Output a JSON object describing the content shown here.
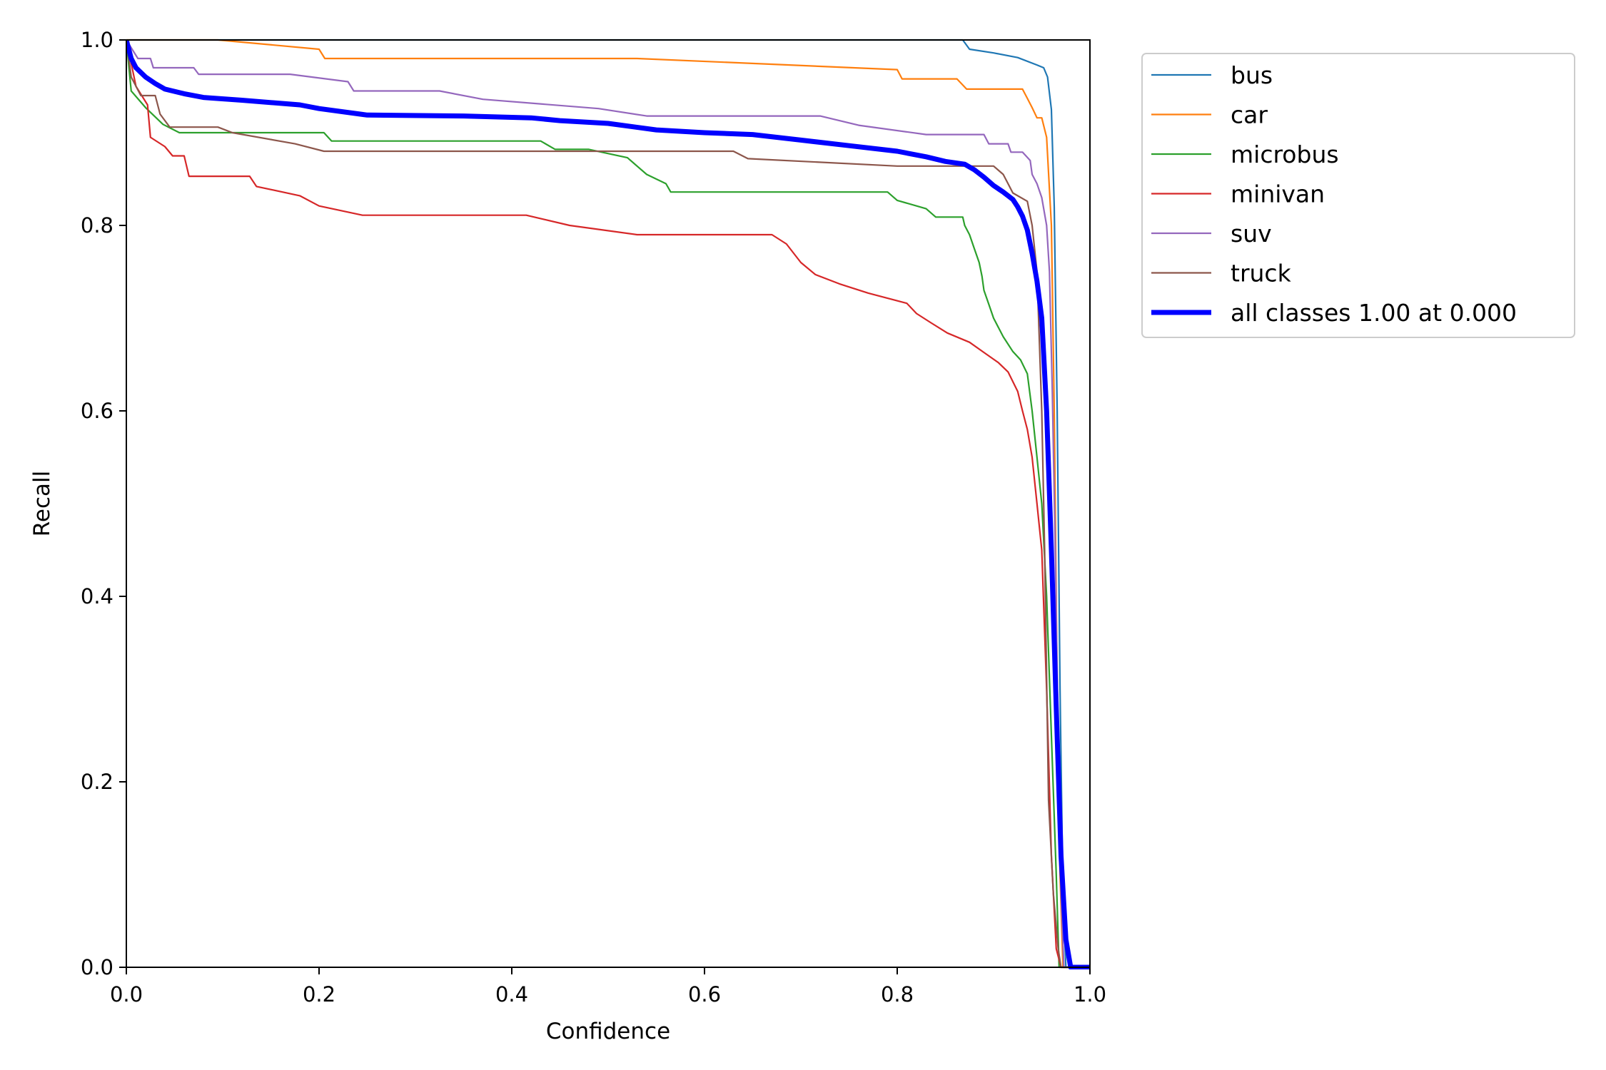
{
  "chart_data": {
    "type": "line",
    "xlabel": "Confidence",
    "ylabel": "Recall",
    "xlim": [
      0,
      1
    ],
    "ylim": [
      0,
      1
    ],
    "x_ticks": [
      "0.0",
      "0.2",
      "0.4",
      "0.6",
      "0.8",
      "1.0"
    ],
    "y_ticks": [
      "0.0",
      "0.2",
      "0.4",
      "0.6",
      "0.8",
      "1.0"
    ],
    "grid": false,
    "legend_position": "outside-top-right",
    "series": [
      {
        "name": "bus",
        "color": "#1f77b4",
        "points": [
          [
            0.0,
            1.0
          ],
          [
            0.868,
            1.0
          ],
          [
            0.875,
            0.99
          ],
          [
            0.9,
            0.986
          ],
          [
            0.925,
            0.981
          ],
          [
            0.945,
            0.973
          ],
          [
            0.952,
            0.97
          ],
          [
            0.956,
            0.96
          ],
          [
            0.96,
            0.925
          ],
          [
            0.963,
            0.82
          ],
          [
            0.966,
            0.6
          ],
          [
            0.969,
            0.3
          ],
          [
            0.972,
            0.08
          ],
          [
            0.975,
            0.0
          ],
          [
            1.0,
            0.0
          ]
        ]
      },
      {
        "name": "car",
        "color": "#ff7f0e",
        "points": [
          [
            0.0,
            1.0
          ],
          [
            0.095,
            1.0
          ],
          [
            0.2,
            0.99
          ],
          [
            0.206,
            0.98
          ],
          [
            0.53,
            0.98
          ],
          [
            0.8,
            0.968
          ],
          [
            0.805,
            0.958
          ],
          [
            0.862,
            0.958
          ],
          [
            0.872,
            0.947
          ],
          [
            0.93,
            0.947
          ],
          [
            0.935,
            0.937
          ],
          [
            0.94,
            0.927
          ],
          [
            0.945,
            0.916
          ],
          [
            0.95,
            0.916
          ],
          [
            0.955,
            0.895
          ],
          [
            0.96,
            0.8
          ],
          [
            0.963,
            0.6
          ],
          [
            0.966,
            0.3
          ],
          [
            0.969,
            0.1
          ],
          [
            0.972,
            0.0
          ],
          [
            1.0,
            0.0
          ]
        ]
      },
      {
        "name": "microbus",
        "color": "#2ca02c",
        "points": [
          [
            0.0,
            1.0
          ],
          [
            0.005,
            0.945
          ],
          [
            0.02,
            0.927
          ],
          [
            0.038,
            0.909
          ],
          [
            0.055,
            0.9
          ],
          [
            0.205,
            0.9
          ],
          [
            0.213,
            0.891
          ],
          [
            0.43,
            0.891
          ],
          [
            0.445,
            0.882
          ],
          [
            0.48,
            0.882
          ],
          [
            0.52,
            0.873
          ],
          [
            0.53,
            0.864
          ],
          [
            0.54,
            0.855
          ],
          [
            0.56,
            0.845
          ],
          [
            0.565,
            0.836
          ],
          [
            0.79,
            0.836
          ],
          [
            0.8,
            0.827
          ],
          [
            0.83,
            0.818
          ],
          [
            0.84,
            0.809
          ],
          [
            0.868,
            0.809
          ],
          [
            0.87,
            0.8
          ],
          [
            0.875,
            0.79
          ],
          [
            0.88,
            0.775
          ],
          [
            0.885,
            0.76
          ],
          [
            0.888,
            0.745
          ],
          [
            0.89,
            0.73
          ],
          [
            0.895,
            0.715
          ],
          [
            0.9,
            0.7
          ],
          [
            0.91,
            0.68
          ],
          [
            0.92,
            0.664
          ],
          [
            0.928,
            0.655
          ],
          [
            0.935,
            0.64
          ],
          [
            0.94,
            0.6
          ],
          [
            0.945,
            0.55
          ],
          [
            0.95,
            0.5
          ],
          [
            0.955,
            0.4
          ],
          [
            0.96,
            0.25
          ],
          [
            0.965,
            0.1
          ],
          [
            0.968,
            0.0
          ],
          [
            1.0,
            0.0
          ]
        ]
      },
      {
        "name": "minivan",
        "color": "#d62728",
        "points": [
          [
            0.0,
            1.0
          ],
          [
            0.01,
            0.95
          ],
          [
            0.022,
            0.93
          ],
          [
            0.025,
            0.895
          ],
          [
            0.04,
            0.885
          ],
          [
            0.048,
            0.875
          ],
          [
            0.06,
            0.875
          ],
          [
            0.065,
            0.853
          ],
          [
            0.128,
            0.853
          ],
          [
            0.135,
            0.842
          ],
          [
            0.18,
            0.832
          ],
          [
            0.2,
            0.821
          ],
          [
            0.245,
            0.811
          ],
          [
            0.415,
            0.811
          ],
          [
            0.46,
            0.8
          ],
          [
            0.53,
            0.79
          ],
          [
            0.67,
            0.79
          ],
          [
            0.685,
            0.78
          ],
          [
            0.7,
            0.76
          ],
          [
            0.715,
            0.747
          ],
          [
            0.74,
            0.737
          ],
          [
            0.77,
            0.727
          ],
          [
            0.81,
            0.716
          ],
          [
            0.82,
            0.705
          ],
          [
            0.835,
            0.695
          ],
          [
            0.852,
            0.684
          ],
          [
            0.875,
            0.674
          ],
          [
            0.89,
            0.663
          ],
          [
            0.905,
            0.652
          ],
          [
            0.915,
            0.642
          ],
          [
            0.925,
            0.621
          ],
          [
            0.93,
            0.6
          ],
          [
            0.935,
            0.58
          ],
          [
            0.94,
            0.55
          ],
          [
            0.945,
            0.5
          ],
          [
            0.95,
            0.45
          ],
          [
            0.955,
            0.3
          ],
          [
            0.96,
            0.12
          ],
          [
            0.965,
            0.02
          ],
          [
            0.97,
            0.0
          ],
          [
            1.0,
            0.0
          ]
        ]
      },
      {
        "name": "suv",
        "color": "#9467bd",
        "points": [
          [
            0.0,
            1.0
          ],
          [
            0.012,
            0.98
          ],
          [
            0.025,
            0.98
          ],
          [
            0.028,
            0.97
          ],
          [
            0.07,
            0.97
          ],
          [
            0.075,
            0.963
          ],
          [
            0.17,
            0.963
          ],
          [
            0.23,
            0.955
          ],
          [
            0.236,
            0.945
          ],
          [
            0.325,
            0.945
          ],
          [
            0.37,
            0.936
          ],
          [
            0.49,
            0.926
          ],
          [
            0.54,
            0.918
          ],
          [
            0.72,
            0.918
          ],
          [
            0.76,
            0.908
          ],
          [
            0.83,
            0.898
          ],
          [
            0.89,
            0.898
          ],
          [
            0.895,
            0.888
          ],
          [
            0.915,
            0.888
          ],
          [
            0.918,
            0.879
          ],
          [
            0.93,
            0.879
          ],
          [
            0.938,
            0.87
          ],
          [
            0.94,
            0.855
          ],
          [
            0.945,
            0.845
          ],
          [
            0.95,
            0.83
          ],
          [
            0.955,
            0.8
          ],
          [
            0.958,
            0.75
          ],
          [
            0.961,
            0.62
          ],
          [
            0.964,
            0.45
          ],
          [
            0.967,
            0.25
          ],
          [
            0.97,
            0.08
          ],
          [
            0.973,
            0.0
          ],
          [
            1.0,
            0.0
          ]
        ]
      },
      {
        "name": "truck",
        "color": "#8c564b",
        "points": [
          [
            0.0,
            1.0
          ],
          [
            0.005,
            0.96
          ],
          [
            0.015,
            0.94
          ],
          [
            0.03,
            0.94
          ],
          [
            0.035,
            0.92
          ],
          [
            0.045,
            0.906
          ],
          [
            0.095,
            0.906
          ],
          [
            0.11,
            0.9
          ],
          [
            0.175,
            0.888
          ],
          [
            0.205,
            0.88
          ],
          [
            0.63,
            0.88
          ],
          [
            0.645,
            0.872
          ],
          [
            0.8,
            0.864
          ],
          [
            0.9,
            0.864
          ],
          [
            0.91,
            0.855
          ],
          [
            0.915,
            0.845
          ],
          [
            0.92,
            0.835
          ],
          [
            0.935,
            0.826
          ],
          [
            0.94,
            0.8
          ],
          [
            0.945,
            0.75
          ],
          [
            0.95,
            0.6
          ],
          [
            0.953,
            0.45
          ],
          [
            0.957,
            0.18
          ],
          [
            0.962,
            0.08
          ],
          [
            0.967,
            0.02
          ],
          [
            0.97,
            0.0
          ],
          [
            1.0,
            0.0
          ]
        ]
      },
      {
        "name": "all classes 1.00 at 0.000",
        "color": "#0000ff",
        "bold": true,
        "points": [
          [
            0.0,
            1.0
          ],
          [
            0.005,
            0.98
          ],
          [
            0.01,
            0.97
          ],
          [
            0.02,
            0.96
          ],
          [
            0.03,
            0.953
          ],
          [
            0.04,
            0.947
          ],
          [
            0.06,
            0.942
          ],
          [
            0.08,
            0.938
          ],
          [
            0.12,
            0.935
          ],
          [
            0.18,
            0.93
          ],
          [
            0.2,
            0.926
          ],
          [
            0.25,
            0.919
          ],
          [
            0.35,
            0.918
          ],
          [
            0.42,
            0.916
          ],
          [
            0.45,
            0.913
          ],
          [
            0.5,
            0.91
          ],
          [
            0.55,
            0.903
          ],
          [
            0.6,
            0.9
          ],
          [
            0.65,
            0.898
          ],
          [
            0.7,
            0.892
          ],
          [
            0.75,
            0.886
          ],
          [
            0.8,
            0.88
          ],
          [
            0.83,
            0.874
          ],
          [
            0.85,
            0.869
          ],
          [
            0.87,
            0.866
          ],
          [
            0.88,
            0.86
          ],
          [
            0.89,
            0.852
          ],
          [
            0.9,
            0.843
          ],
          [
            0.91,
            0.836
          ],
          [
            0.92,
            0.828
          ],
          [
            0.925,
            0.82
          ],
          [
            0.93,
            0.81
          ],
          [
            0.935,
            0.795
          ],
          [
            0.94,
            0.77
          ],
          [
            0.945,
            0.74
          ],
          [
            0.95,
            0.7
          ],
          [
            0.955,
            0.6
          ],
          [
            0.96,
            0.45
          ],
          [
            0.965,
            0.28
          ],
          [
            0.97,
            0.12
          ],
          [
            0.975,
            0.03
          ],
          [
            0.98,
            0.0
          ],
          [
            1.0,
            0.0
          ]
        ]
      }
    ]
  }
}
